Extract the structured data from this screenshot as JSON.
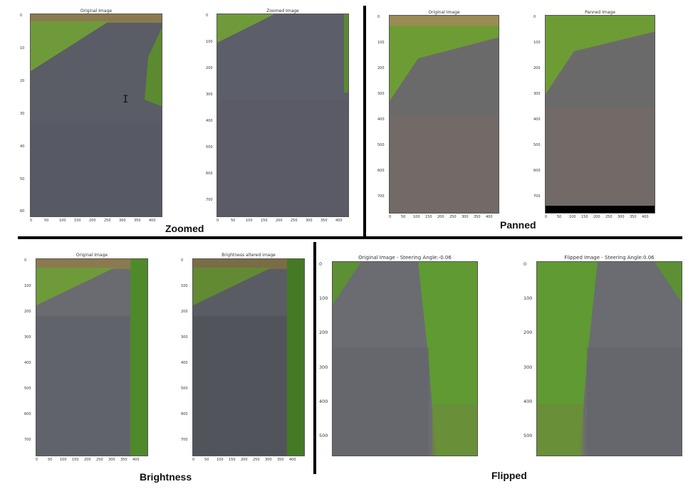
{
  "colors": {
    "asphalt": "#5c5e66",
    "asphalt_light": "#7b7d84",
    "grass": "#6f9a3a",
    "grass_dark": "#4d7428",
    "divider": "#000000"
  },
  "zoomed": {
    "caption": "Zoomed",
    "left_title": "Original Image",
    "right_title": "Zoomed Image",
    "left_y_ticks": [
      "0",
      "10",
      "20",
      "30",
      "40",
      "50",
      "60"
    ],
    "right_y_ticks": [
      "0",
      "100",
      "200",
      "300",
      "400",
      "500",
      "600",
      "700"
    ],
    "x_ticks": [
      "0",
      "50",
      "100",
      "150",
      "200",
      "250",
      "300",
      "350",
      "400"
    ]
  },
  "panned": {
    "caption": "Panned",
    "left_title": "Original Image",
    "right_title": "Panned Image",
    "y_ticks": [
      "0",
      "100",
      "200",
      "300",
      "400",
      "500",
      "600",
      "700"
    ],
    "x_ticks": [
      "0",
      "50",
      "100",
      "150",
      "200",
      "250",
      "300",
      "350",
      "400"
    ]
  },
  "brightness": {
    "caption": "Brightness",
    "left_title": "Original Image",
    "right_title": "Brightness altered image",
    "y_ticks": [
      "0",
      "100",
      "200",
      "300",
      "400",
      "500",
      "600",
      "700"
    ],
    "x_ticks": [
      "0",
      "50",
      "100",
      "150",
      "200",
      "250",
      "300",
      "350",
      "400"
    ]
  },
  "flipped": {
    "caption": "Flipped",
    "left_title": "Original Image - Steering Angle:-0.06",
    "right_title": "Flipped Image - Steering Angle:0.06",
    "y_ticks": [
      "0",
      "100",
      "200",
      "300",
      "400",
      "500"
    ]
  },
  "cursor": {
    "glyph": "I"
  }
}
